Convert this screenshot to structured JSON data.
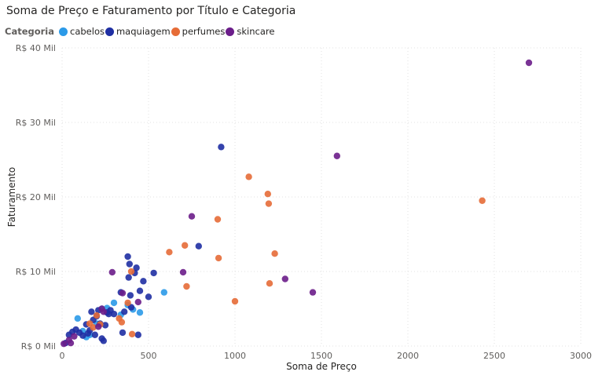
{
  "chart_data": {
    "type": "scatter",
    "title": "Soma de Preço e Faturamento por Título e Categoria",
    "xlabel": "Soma de Preço",
    "ylabel": "Faturamento",
    "xlim": [
      0,
      3000
    ],
    "ylim": [
      0,
      40000
    ],
    "x_ticks": [
      "0",
      "500",
      "1000",
      "1500",
      "2000",
      "2500",
      "3000"
    ],
    "y_ticks": [
      "R$ 0 Mil",
      "R$ 10 Mil",
      "R$ 20 Mil",
      "R$ 30 Mil",
      "R$ 40 Mil"
    ],
    "grid": true,
    "legend": {
      "title": "Categoria",
      "placement": "top-left",
      "items": [
        {
          "name": "cabelos",
          "color": "#2b9ae8"
        },
        {
          "name": "maquiagem",
          "color": "#1f2fa3"
        },
        {
          "name": "perfumes",
          "color": "#e66c37"
        },
        {
          "name": "skincare",
          "color": "#6b1d8a"
        }
      ]
    },
    "series": [
      {
        "name": "cabelos",
        "color": "#2b9ae8",
        "points": [
          [
            90,
            3700
          ],
          [
            120,
            2000
          ],
          [
            140,
            1200
          ],
          [
            160,
            1500
          ],
          [
            200,
            3000
          ],
          [
            230,
            5000
          ],
          [
            260,
            5100
          ],
          [
            300,
            5800
          ],
          [
            340,
            4200
          ],
          [
            380,
            5500
          ],
          [
            410,
            4900
          ],
          [
            450,
            4500
          ],
          [
            590,
            7200
          ]
        ]
      },
      {
        "name": "maquiagem",
        "color": "#1f2fa3",
        "points": [
          [
            20,
            400
          ],
          [
            40,
            1500
          ],
          [
            60,
            1900
          ],
          [
            80,
            2200
          ],
          [
            100,
            1800
          ],
          [
            120,
            1400
          ],
          [
            140,
            2900
          ],
          [
            150,
            1700
          ],
          [
            160,
            2100
          ],
          [
            170,
            4600
          ],
          [
            180,
            3500
          ],
          [
            190,
            1500
          ],
          [
            200,
            4000
          ],
          [
            210,
            4800
          ],
          [
            220,
            3000
          ],
          [
            230,
            1000
          ],
          [
            240,
            700
          ],
          [
            250,
            2800
          ],
          [
            260,
            4500
          ],
          [
            270,
            4300
          ],
          [
            280,
            4800
          ],
          [
            300,
            4300
          ],
          [
            340,
            7200
          ],
          [
            350,
            1800
          ],
          [
            360,
            4600
          ],
          [
            380,
            12000
          ],
          [
            385,
            9200
          ],
          [
            390,
            11000
          ],
          [
            395,
            6800
          ],
          [
            400,
            5200
          ],
          [
            420,
            9800
          ],
          [
            430,
            10500
          ],
          [
            440,
            1500
          ],
          [
            450,
            7400
          ],
          [
            470,
            8700
          ],
          [
            500,
            6600
          ],
          [
            530,
            9800
          ],
          [
            790,
            13400
          ],
          [
            920,
            26700
          ]
        ]
      },
      {
        "name": "perfumes",
        "color": "#e66c37",
        "points": [
          [
            160,
            3000
          ],
          [
            180,
            2500
          ],
          [
            200,
            4100
          ],
          [
            220,
            2900
          ],
          [
            330,
            3700
          ],
          [
            345,
            3200
          ],
          [
            380,
            5800
          ],
          [
            400,
            10000
          ],
          [
            405,
            1600
          ],
          [
            620,
            12600
          ],
          [
            710,
            13500
          ],
          [
            720,
            8000
          ],
          [
            900,
            17000
          ],
          [
            905,
            11800
          ],
          [
            1000,
            6000
          ],
          [
            1080,
            22700
          ],
          [
            1190,
            20400
          ],
          [
            1195,
            19100
          ],
          [
            1200,
            8400
          ],
          [
            1230,
            12400
          ],
          [
            2430,
            19500
          ]
        ]
      },
      {
        "name": "skincare",
        "color": "#6b1d8a",
        "points": [
          [
            10,
            300
          ],
          [
            40,
            800
          ],
          [
            50,
            400
          ],
          [
            70,
            1300
          ],
          [
            210,
            2600
          ],
          [
            230,
            5000
          ],
          [
            240,
            4600
          ],
          [
            290,
            9900
          ],
          [
            350,
            7100
          ],
          [
            440,
            5900
          ],
          [
            700,
            9900
          ],
          [
            750,
            17400
          ],
          [
            1290,
            9000
          ],
          [
            1450,
            7200
          ],
          [
            1590,
            25500
          ],
          [
            2700,
            38000
          ]
        ]
      }
    ]
  }
}
